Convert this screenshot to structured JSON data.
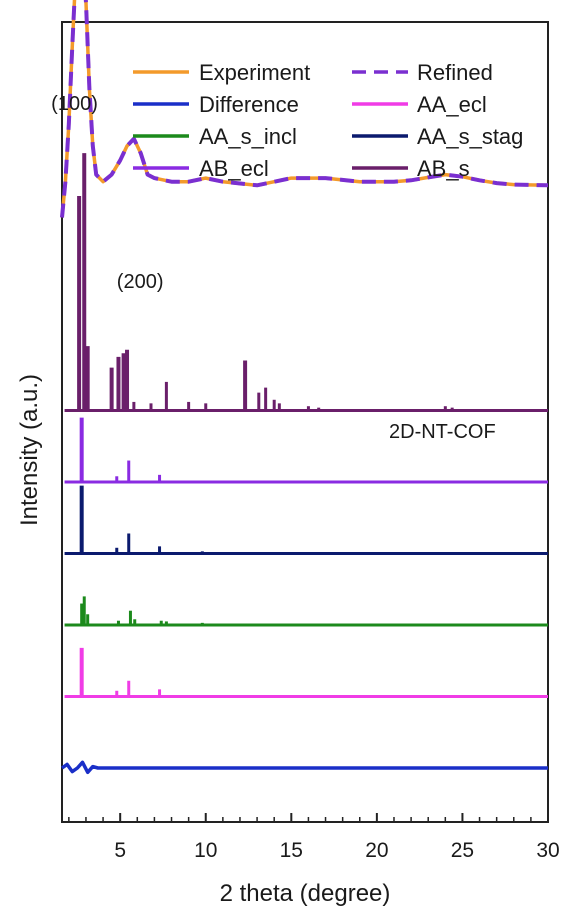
{
  "chart_data": {
    "type": "line",
    "xlabel": "2 theta (degree)",
    "ylabel": "Intensity (a.u.)",
    "xlim": [
      1.6,
      30
    ],
    "xticks": [
      5,
      10,
      15,
      20,
      25,
      30
    ],
    "yticks": "none",
    "sample_label": "2D-NT-COF",
    "annotations": [
      {
        "text": "(100)",
        "x": 2.8
      },
      {
        "text": "(200)",
        "x": 5.7
      }
    ],
    "legend": {
      "placement": "top",
      "columns": 2,
      "entries": [
        {
          "series": "Experiment",
          "label": "Experiment"
        },
        {
          "series": "Refined",
          "label": "Refined"
        },
        {
          "series": "Difference",
          "label": "Difference"
        },
        {
          "series": "AA_ecl",
          "label": "AA_ecl"
        },
        {
          "series": "AA_s_incl",
          "label": "AA_s_incl"
        },
        {
          "series": "AA_s_stag",
          "label": "AA_s_stag"
        },
        {
          "series": "AB_ecl",
          "label": "AB_ecl"
        },
        {
          "series": "AB_s",
          "label": "AB_s"
        }
      ]
    },
    "series": [
      {
        "name": "Experiment",
        "color": "#F39A2B",
        "style": "solid",
        "points": [
          [
            1.6,
            0.82
          ],
          [
            1.8,
            0.87
          ],
          [
            2.0,
            0.95
          ],
          [
            2.2,
            1.06
          ],
          [
            2.4,
            1.16
          ],
          [
            2.6,
            1.21
          ],
          [
            2.8,
            1.2
          ],
          [
            3.0,
            1.12
          ],
          [
            3.2,
            1.0
          ],
          [
            3.4,
            0.92
          ],
          [
            3.6,
            0.88
          ],
          [
            4.0,
            0.87
          ],
          [
            4.5,
            0.88
          ],
          [
            5.0,
            0.9
          ],
          [
            5.4,
            0.92
          ],
          [
            5.8,
            0.93
          ],
          [
            6.2,
            0.91
          ],
          [
            6.6,
            0.88
          ],
          [
            7.0,
            0.875
          ],
          [
            8,
            0.87
          ],
          [
            9,
            0.87
          ],
          [
            10,
            0.875
          ],
          [
            11,
            0.87
          ],
          [
            13,
            0.865
          ],
          [
            15,
            0.875
          ],
          [
            17,
            0.875
          ],
          [
            19,
            0.87
          ],
          [
            21,
            0.87
          ],
          [
            22,
            0.872
          ],
          [
            23,
            0.876
          ],
          [
            24,
            0.88
          ],
          [
            25,
            0.877
          ],
          [
            26,
            0.872
          ],
          [
            27,
            0.868
          ],
          [
            28,
            0.866
          ],
          [
            30,
            0.865
          ]
        ]
      },
      {
        "name": "Refined",
        "color": "#7A2FD0",
        "style": "dashed",
        "points": [
          [
            1.6,
            0.82
          ],
          [
            1.8,
            0.87
          ],
          [
            2.0,
            0.95
          ],
          [
            2.2,
            1.06
          ],
          [
            2.4,
            1.16
          ],
          [
            2.6,
            1.21
          ],
          [
            2.8,
            1.2
          ],
          [
            3.0,
            1.12
          ],
          [
            3.2,
            1.0
          ],
          [
            3.4,
            0.92
          ],
          [
            3.6,
            0.88
          ],
          [
            4.0,
            0.87
          ],
          [
            4.5,
            0.88
          ],
          [
            5.0,
            0.9
          ],
          [
            5.4,
            0.92
          ],
          [
            5.8,
            0.93
          ],
          [
            6.2,
            0.91
          ],
          [
            6.6,
            0.88
          ],
          [
            7.0,
            0.875
          ],
          [
            8,
            0.87
          ],
          [
            9,
            0.87
          ],
          [
            10,
            0.875
          ],
          [
            11,
            0.87
          ],
          [
            13,
            0.865
          ],
          [
            15,
            0.875
          ],
          [
            17,
            0.875
          ],
          [
            19,
            0.87
          ],
          [
            21,
            0.87
          ],
          [
            22,
            0.872
          ],
          [
            23,
            0.876
          ],
          [
            24,
            0.88
          ],
          [
            25,
            0.877
          ],
          [
            26,
            0.872
          ],
          [
            27,
            0.868
          ],
          [
            28,
            0.866
          ],
          [
            30,
            0.865
          ]
        ]
      },
      {
        "name": "Difference",
        "color": "#1A2FC8",
        "style": "solid",
        "baseline": 0.05,
        "points": [
          [
            1.6,
            0.05
          ],
          [
            1.9,
            0.055
          ],
          [
            2.2,
            0.045
          ],
          [
            2.5,
            0.05
          ],
          [
            2.8,
            0.058
          ],
          [
            3.1,
            0.044
          ],
          [
            3.4,
            0.052
          ],
          [
            3.7,
            0.05
          ],
          [
            4.2,
            0.05
          ],
          [
            5.0,
            0.05
          ],
          [
            6.0,
            0.05
          ],
          [
            10,
            0.05
          ],
          [
            20,
            0.05
          ],
          [
            30,
            0.05
          ]
        ]
      },
      {
        "name": "AA_ecl",
        "color": "#F03CE6",
        "style": "solid",
        "baseline": 0.15,
        "peaks": [
          [
            2.75,
            0.068
          ],
          [
            4.8,
            0.008
          ],
          [
            5.5,
            0.022
          ],
          [
            7.3,
            0.01
          ]
        ]
      },
      {
        "name": "AA_s_incl",
        "color": "#1C8A1C",
        "style": "solid",
        "baseline": 0.25,
        "peaks": [
          [
            2.75,
            0.03
          ],
          [
            2.9,
            0.04
          ],
          [
            3.1,
            0.015
          ],
          [
            4.9,
            0.006
          ],
          [
            5.6,
            0.02
          ],
          [
            5.85,
            0.008
          ],
          [
            7.4,
            0.006
          ],
          [
            7.7,
            0.005
          ],
          [
            9.8,
            0.003
          ],
          [
            10.2,
            0.002
          ],
          [
            12.3,
            0.002
          ],
          [
            15.2,
            0.001
          ]
        ]
      },
      {
        "name": "AA_s_stag",
        "color": "#0B1A6E",
        "style": "solid",
        "baseline": 0.35,
        "peaks": [
          [
            2.75,
            0.095
          ],
          [
            4.8,
            0.008
          ],
          [
            5.5,
            0.028
          ],
          [
            7.3,
            0.01
          ],
          [
            9.8,
            0.003
          ],
          [
            23.5,
            0.002
          ]
        ]
      },
      {
        "name": "AB_ecl",
        "color": "#8A2BE2",
        "style": "solid",
        "baseline": 0.45,
        "peaks": [
          [
            2.75,
            0.09
          ],
          [
            4.8,
            0.008
          ],
          [
            5.5,
            0.03
          ],
          [
            7.3,
            0.01
          ]
        ]
      },
      {
        "name": "AB_s",
        "color": "#6A1F6A",
        "style": "solid",
        "baseline": 0.55,
        "peaks": [
          [
            2.6,
            0.3
          ],
          [
            2.9,
            0.36
          ],
          [
            3.1,
            0.09
          ],
          [
            4.5,
            0.06
          ],
          [
            4.9,
            0.075
          ],
          [
            5.2,
            0.08
          ],
          [
            5.4,
            0.085
          ],
          [
            5.8,
            0.012
          ],
          [
            6.8,
            0.01
          ],
          [
            7.7,
            0.04
          ],
          [
            9.0,
            0.012
          ],
          [
            10.0,
            0.01
          ],
          [
            12.3,
            0.07
          ],
          [
            13.1,
            0.025
          ],
          [
            13.5,
            0.032
          ],
          [
            14.0,
            0.015
          ],
          [
            14.3,
            0.01
          ],
          [
            16.0,
            0.006
          ],
          [
            16.6,
            0.004
          ],
          [
            24.0,
            0.006
          ],
          [
            24.4,
            0.004
          ],
          [
            27.5,
            0.002
          ]
        ]
      }
    ]
  }
}
